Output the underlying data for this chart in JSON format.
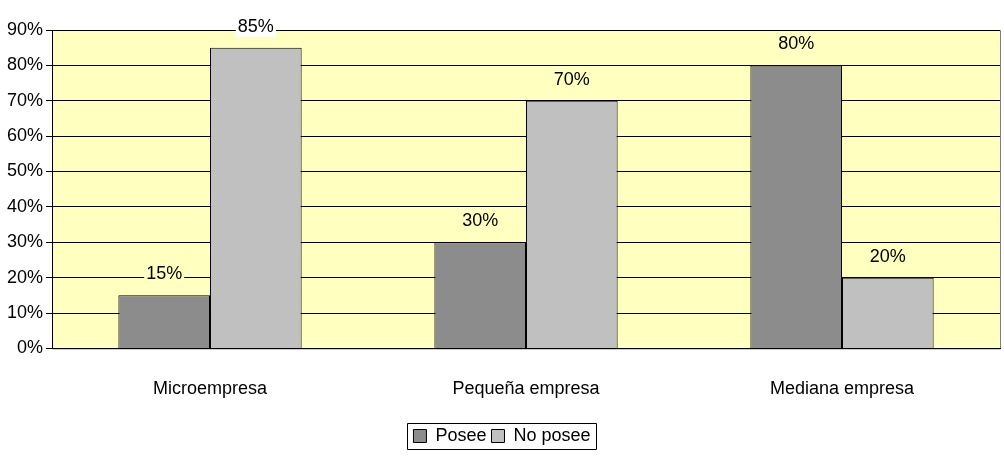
{
  "chart_data": {
    "type": "bar",
    "categories": [
      "Microempresa",
      "Pequeña empresa",
      "Mediana empresa"
    ],
    "series": [
      {
        "name": "Posee",
        "color": "#8c8c8c",
        "values": [
          15,
          30,
          80
        ],
        "value_labels": [
          "15%",
          "30%",
          "80%"
        ]
      },
      {
        "name": "No posee",
        "color": "#c0c0c0",
        "values": [
          85,
          70,
          20
        ],
        "value_labels": [
          "85%",
          "70%",
          "20%"
        ]
      }
    ],
    "ylim": [
      0,
      90
    ],
    "yticks": [
      {
        "value": 0,
        "label": "0%"
      },
      {
        "value": 10,
        "label": "10%"
      },
      {
        "value": 20,
        "label": "20%"
      },
      {
        "value": 30,
        "label": "30%"
      },
      {
        "value": 40,
        "label": "40%"
      },
      {
        "value": 50,
        "label": "50%"
      },
      {
        "value": 60,
        "label": "60%"
      },
      {
        "value": 70,
        "label": "70%"
      },
      {
        "value": 80,
        "label": "80%"
      },
      {
        "value": 90,
        "label": "90%"
      }
    ],
    "grid": "y",
    "legend": "bottom"
  }
}
